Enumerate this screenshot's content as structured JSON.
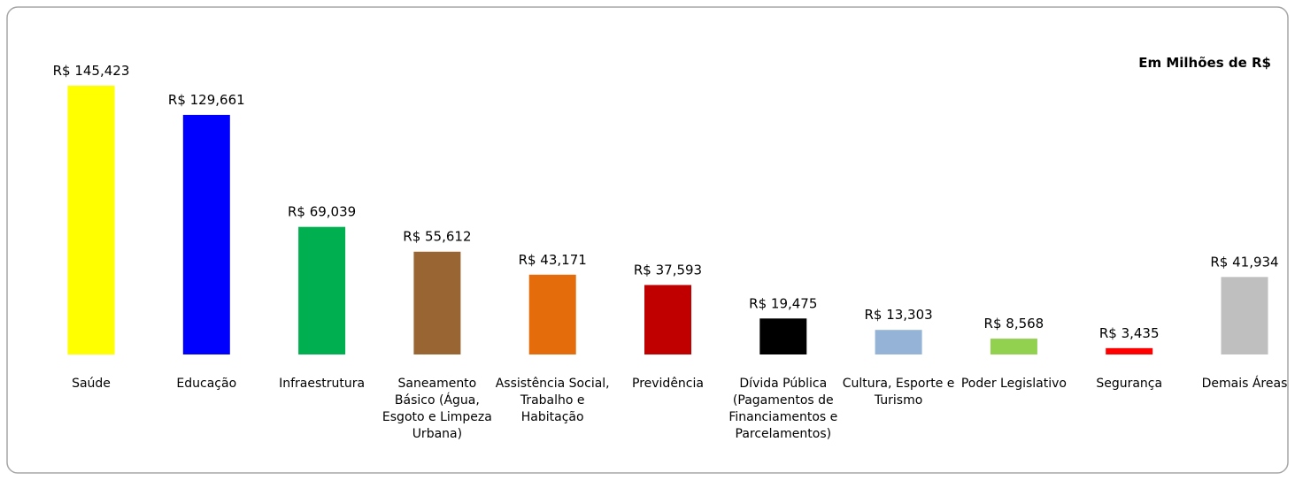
{
  "chart_data": {
    "type": "bar",
    "title": "Em Milhões de R$",
    "categories": [
      "Saúde",
      "Educação",
      "Infraestrutura",
      "Saneamento Básico (Água, Esgoto e Limpeza Urbana)",
      "Assistência Social, Trabalho e Habitação",
      "Previdência",
      "Dívida Pública (Pagamentos de Financiamentos e Parcelamentos)",
      "Cultura, Esporte e Turismo",
      "Poder Legislativo",
      "Segurança",
      "Demais Áreas"
    ],
    "values": [
      145.423,
      129.661,
      69.039,
      55.612,
      43.171,
      37.593,
      19.475,
      13.303,
      8.568,
      3.435,
      41.934
    ],
    "value_labels": [
      "R$ 145,423",
      "R$ 129,661",
      "R$ 69,039",
      "R$ 55,612",
      "R$ 43,171",
      "R$ 37,593",
      "R$ 19,475",
      "R$ 13,303",
      "R$ 8,568",
      "R$ 3,435",
      "R$ 41,934"
    ],
    "colors": [
      "#ffff00",
      "#0000ff",
      "#00b050",
      "#996633",
      "#e46c0a",
      "#c00000",
      "#000000",
      "#95b3d7",
      "#92d050",
      "#ff0000",
      "#bfbfbf"
    ]
  }
}
